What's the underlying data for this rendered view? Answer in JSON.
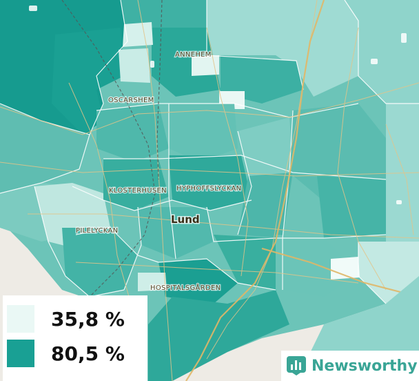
{
  "map": {
    "places": [
      "ANNEHEM",
      "OSCARSHEM",
      "KLOSTERHUSEN",
      "HYPHOFFSLYCKAN",
      "PILELYCKAN",
      "HOSPITALSGÅRDEN"
    ],
    "city": "Lund"
  },
  "legend": {
    "low": {
      "label": "35,8 %",
      "color": "#eaf8f5"
    },
    "high": {
      "label": "80,5 %",
      "color": "#19a094"
    }
  },
  "brand": {
    "name": "Newsworthy",
    "color": "#3aa596"
  }
}
